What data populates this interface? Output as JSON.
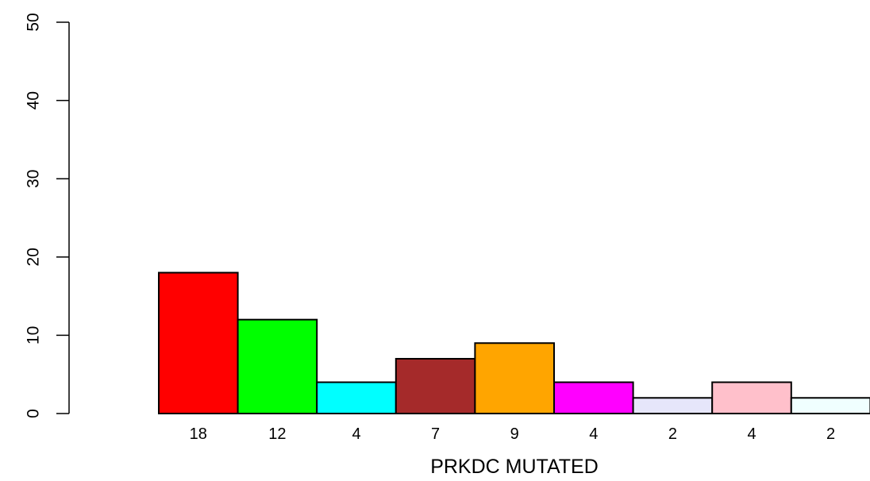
{
  "chart_data": {
    "type": "bar",
    "xlabel": "PRKDC MUTATED",
    "ylabel": "",
    "ylim": [
      0,
      50
    ],
    "yticks": [
      "0",
      "10",
      "20",
      "30",
      "40",
      "50"
    ],
    "values": [
      18,
      12,
      4,
      7,
      9,
      4,
      2,
      4,
      2
    ],
    "bar_labels": [
      "18",
      "12",
      "4",
      "7",
      "9",
      "4",
      "2",
      "4",
      "2"
    ],
    "colors": [
      "#ff0000",
      "#00ff00",
      "#00ffff",
      "#a52a2a",
      "#ffa500",
      "#ff00ff",
      "#e6e6fa",
      "#ffc0cb",
      "#f0ffff"
    ],
    "grid": false,
    "legend": "none"
  }
}
